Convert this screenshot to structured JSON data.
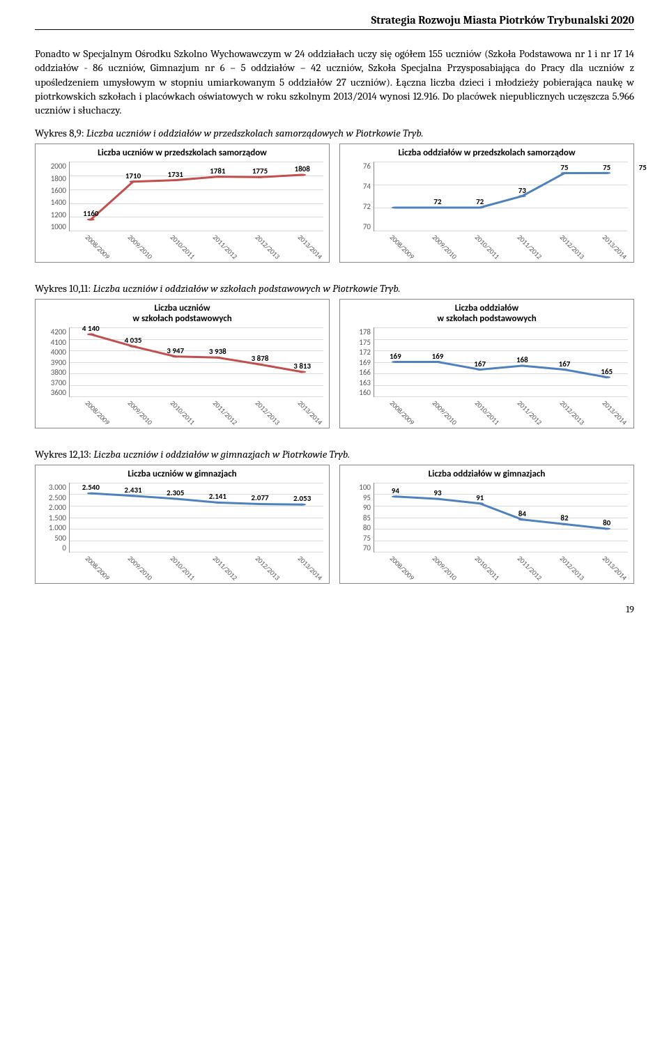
{
  "doc_header": "Strategia Rozwoju Miasta Piotrków Trybunalski 2020",
  "page_number": "19",
  "paragraph1": "Ponadto w Specjalnym Ośrodku Szkolno Wychowawczym  w 24 oddziałach uczy się ogółem 155 uczniów (Szkoła Podstawowa nr 1 i nr 17 14 oddziałów - 86 uczniów, Gimnazjum nr 6 – 5 oddziałów – 42 uczniów, Szkoła Specjalna Przysposabiająca do Pracy dla uczniów z upośledzeniem umysłowym w stopniu umiarkowanym 5 oddziałów 27 uczniów). Łączna liczba dzieci i młodzieży pobierająca naukę w piotrkowskich szkołach i placówkach oświatowych w roku szkolnym 2013/2014 wynosi 12.916. Do placówek niepublicznych uczęszcza 5.966 uczniów i słuchaczy.",
  "caption1_prefix": "Wykres 8,9: ",
  "caption1_italic": "Liczba uczniów i oddziałów w przedszkolach samorządowych w Piotrkowie Tryb.",
  "caption2_prefix": "Wykres 10,11: ",
  "caption2_italic": "Liczba uczniów i oddziałów w szkołach podstawowych w Piotrkowie Tryb.",
  "caption3_prefix": "Wykres 12,13: ",
  "caption3_italic": "Liczba uczniów i oddziałów w gimnazjach w Piotrkowie Tryb.",
  "categories": [
    "2008/2009",
    "2009/2010",
    "2010/2011",
    "2011/2012",
    "2012/2013",
    "2013/2014"
  ],
  "charts": {
    "c1": {
      "title": "Liczba uczniów w przedszkolach samorządow",
      "color": "#c0504d",
      "line_width": 3,
      "ymin": 1000,
      "ymax": 2000,
      "yticks": [
        2000,
        1800,
        1600,
        1400,
        1200,
        1000
      ],
      "values": [
        1160,
        1710,
        1731,
        1781,
        1775,
        1808
      ],
      "labels": [
        "1160",
        "1710",
        "1731",
        "1781",
        "1775",
        "1808"
      ]
    },
    "c2": {
      "title": "Liczba oddziałów  w przedszkolach samorządow",
      "color": "#4f81bd",
      "line_width": 3,
      "ymin": 70,
      "ymax": 76,
      "yticks": [
        76,
        74,
        72,
        70
      ],
      "values": [
        72,
        72,
        72,
        73,
        75,
        75.01
      ],
      "labels": [
        "",
        "72",
        "72",
        "73",
        "75",
        "75"
      ],
      "extra_label": {
        "text": "75",
        "x": 6.35
      }
    },
    "c3": {
      "title": "Liczba uczniów\nw szkołach podstawowych",
      "color": "#c0504d",
      "line_width": 3,
      "ymin": 3600,
      "ymax": 4200,
      "yticks": [
        4200,
        4100,
        4000,
        3900,
        3800,
        3700,
        3600
      ],
      "values": [
        4140,
        4035,
        3947,
        3938,
        3878,
        3813
      ],
      "labels": [
        "4 140",
        "4 035",
        "3 947",
        "3 938",
        "3 878",
        "3 813"
      ]
    },
    "c4": {
      "title": "Liczba oddziałów\nw szkołach podstawowych",
      "color": "#4f81bd",
      "line_width": 3,
      "ymin": 160,
      "ymax": 178,
      "yticks": [
        178,
        175,
        172,
        169,
        166,
        163,
        160
      ],
      "values": [
        169,
        169,
        167,
        168,
        167,
        165
      ],
      "labels": [
        "169",
        "169",
        "167",
        "168",
        "167",
        "165"
      ]
    },
    "c5": {
      "title": "Liczba uczniów w gimnazjach",
      "color": "#4f81bd",
      "line_width": 3,
      "ymin": 0,
      "ymax": 3000,
      "yticks": [
        "3.000",
        "2.500",
        "2.000",
        "1.500",
        "1.000",
        "500",
        "0"
      ],
      "ytick_vals": [
        3000,
        2500,
        2000,
        1500,
        1000,
        500,
        0
      ],
      "values": [
        2540,
        2431,
        2305,
        2141,
        2077,
        2053
      ],
      "labels": [
        "2.540",
        "2.431",
        "2.305",
        "2.141",
        "2.077",
        "2.053"
      ]
    },
    "c6": {
      "title": "Liczba oddziałów  w gimnazjach",
      "color": "#4f81bd",
      "line_width": 3,
      "ymin": 70,
      "ymax": 100,
      "yticks": [
        100,
        95,
        90,
        85,
        80,
        75,
        70
      ],
      "values": [
        94,
        93,
        91,
        84,
        82,
        80
      ],
      "labels": [
        "94",
        "93",
        "91",
        "84",
        "82",
        "80"
      ]
    }
  }
}
